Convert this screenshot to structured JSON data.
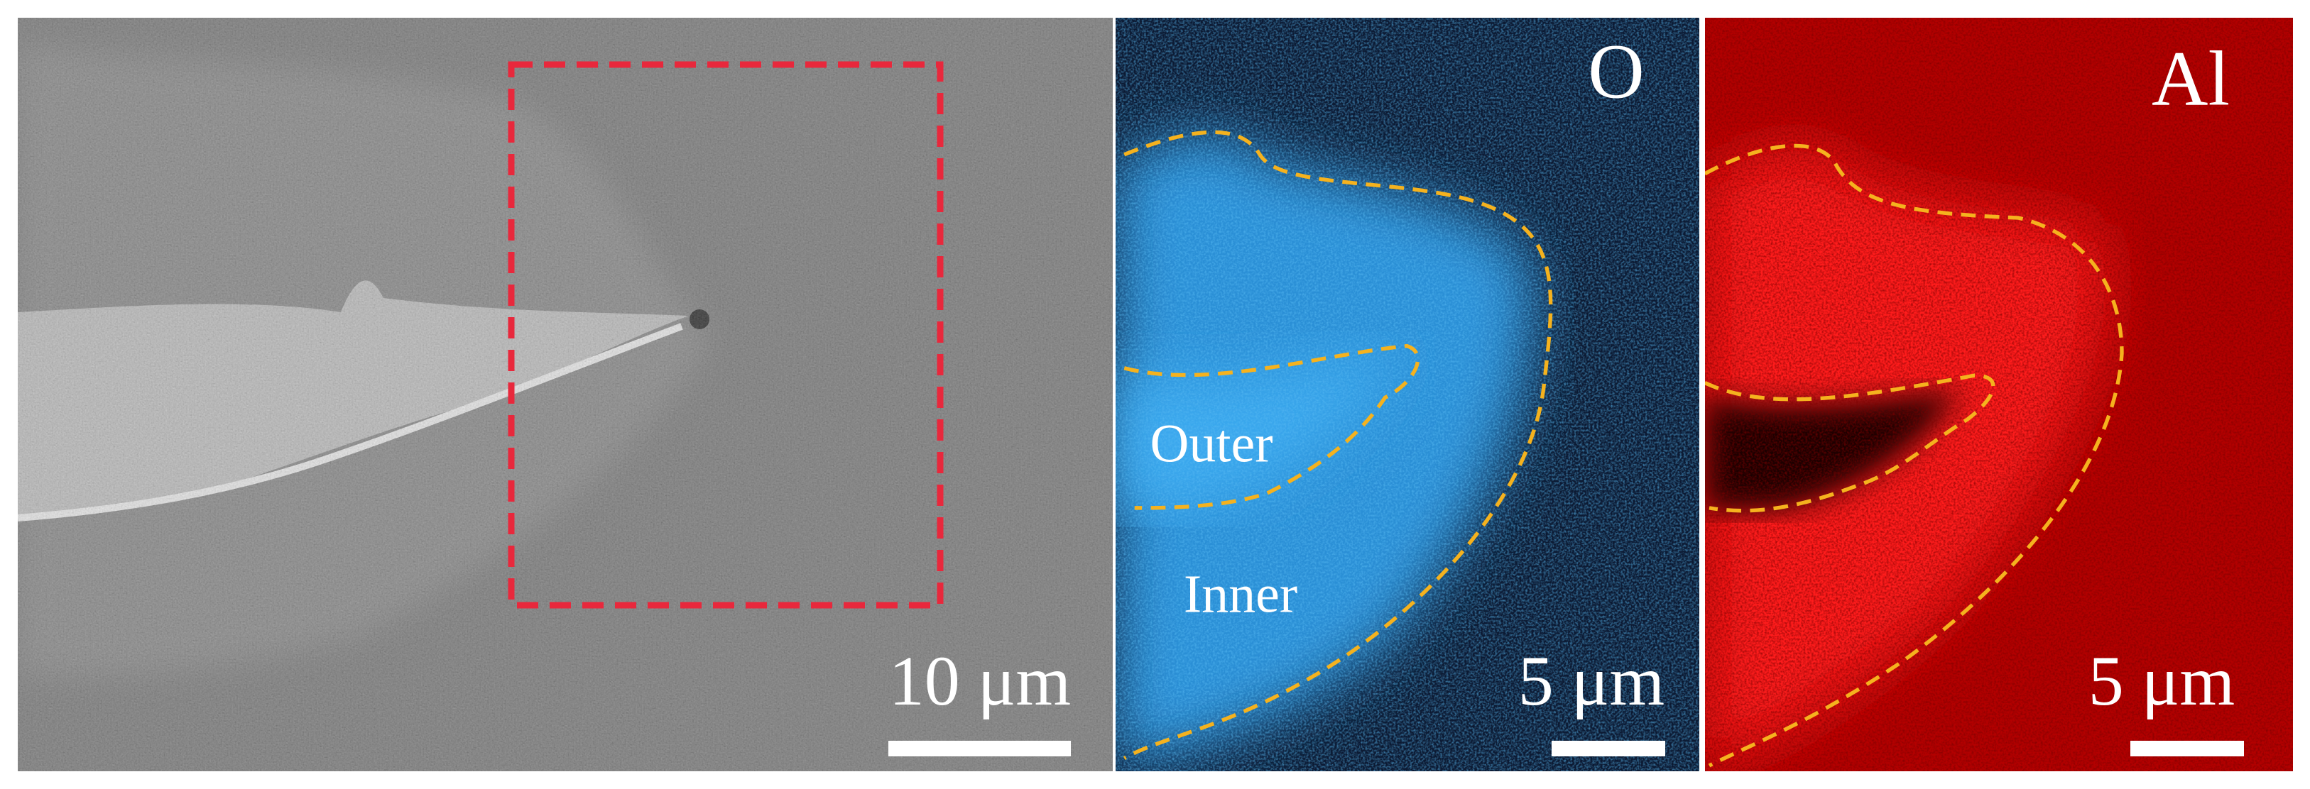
{
  "panels": [
    {
      "scale_bar": "10 μm"
    },
    {
      "element": "O",
      "regions": [
        "Outer",
        "Inner"
      ],
      "scale_bar": "5 μm"
    },
    {
      "element": "Al",
      "scale_bar": "5 μm"
    }
  ]
}
